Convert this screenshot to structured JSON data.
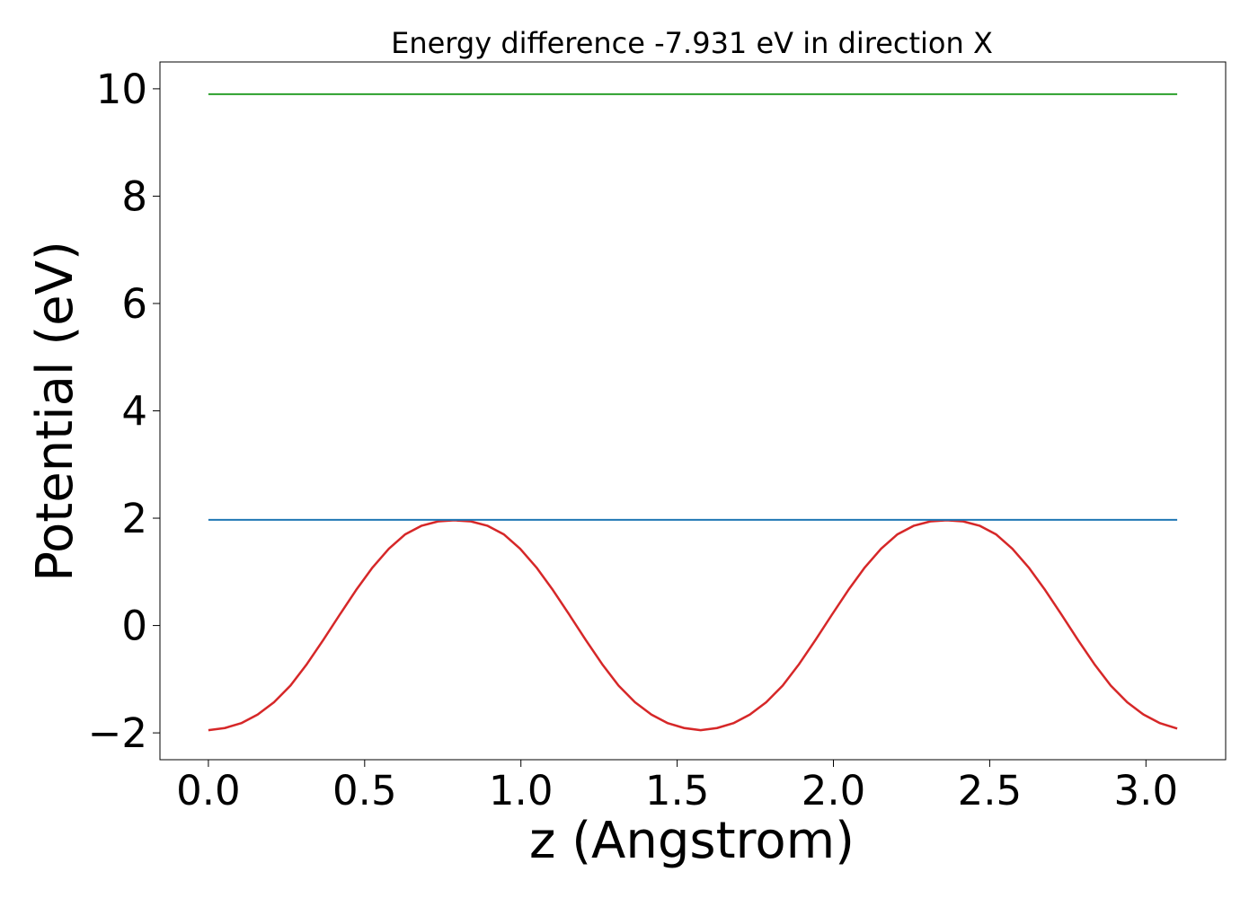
{
  "chart_data": {
    "type": "line",
    "title": "Energy difference -7.931 eV in direction X",
    "xlabel": "z (Angstrom)",
    "ylabel": "Potential (eV)",
    "xlim": [
      -0.155,
      3.255
    ],
    "ylim": [
      -2.5,
      10.5
    ],
    "xticks": [
      0.0,
      0.5,
      1.0,
      1.5,
      2.0,
      2.5,
      3.0
    ],
    "xtick_labels": [
      "0.0",
      "0.5",
      "1.0",
      "1.5",
      "2.0",
      "2.5",
      "3.0"
    ],
    "yticks": [
      -2,
      0,
      2,
      4,
      6,
      8,
      10
    ],
    "ytick_labels": [
      "−2",
      "0",
      "2",
      "4",
      "6",
      "8",
      "10"
    ],
    "grid": false,
    "series": [
      {
        "color": "#d62728",
        "x": [
          0.0,
          0.0525,
          0.105,
          0.1575,
          0.21,
          0.2625,
          0.315,
          0.3675,
          0.42,
          0.4725,
          0.525,
          0.5775,
          0.63,
          0.6825,
          0.735,
          0.7875,
          0.84,
          0.8925,
          0.945,
          0.9975,
          1.05,
          1.1025,
          1.155,
          1.2075,
          1.26,
          1.3125,
          1.365,
          1.4175,
          1.47,
          1.5225,
          1.575,
          1.6275,
          1.68,
          1.7325,
          1.785,
          1.8375,
          1.89,
          1.9425,
          1.995,
          2.0475,
          2.1,
          2.1525,
          2.205,
          2.2575,
          2.31,
          2.3625,
          2.415,
          2.4675,
          2.52,
          2.5725,
          2.625,
          2.6775,
          2.73,
          2.7825,
          2.835,
          2.8875,
          2.94,
          2.9925,
          3.045,
          3.1
        ],
        "values": [
          -1.95,
          -1.91,
          -1.82,
          -1.66,
          -1.43,
          -1.12,
          -0.72,
          -0.27,
          0.2,
          0.66,
          1.08,
          1.43,
          1.7,
          1.86,
          1.94,
          1.96,
          1.94,
          1.86,
          1.7,
          1.43,
          1.08,
          0.66,
          0.2,
          -0.27,
          -0.72,
          -1.12,
          -1.43,
          -1.66,
          -1.82,
          -1.91,
          -1.95,
          -1.91,
          -1.82,
          -1.66,
          -1.43,
          -1.12,
          -0.72,
          -0.27,
          0.2,
          0.66,
          1.08,
          1.43,
          1.7,
          1.86,
          1.94,
          1.96,
          1.94,
          1.86,
          1.7,
          1.43,
          1.08,
          0.66,
          0.2,
          -0.27,
          -0.72,
          -1.12,
          -1.43,
          -1.66,
          -1.82,
          -1.92
        ]
      },
      {
        "color": "#1f77b4",
        "x": [
          0.0,
          3.1
        ],
        "values": [
          1.97,
          1.97
        ]
      },
      {
        "color": "#2ca02c",
        "x": [
          0.0,
          3.1
        ],
        "values": [
          9.9,
          9.9
        ]
      }
    ]
  }
}
